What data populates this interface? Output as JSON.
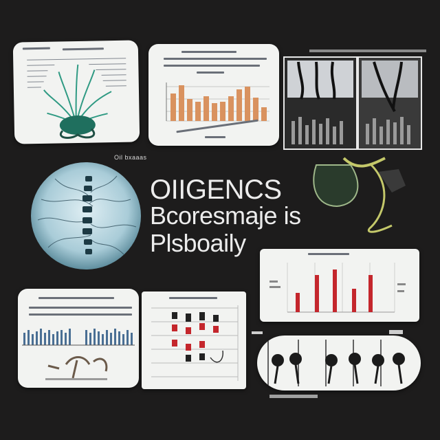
{
  "headline": {
    "line1": "OIIGENCS",
    "line2": "Bcoresmaje is",
    "line3": "Plsboaily"
  },
  "captions": {
    "mid_left": "Oil  bxaaas"
  },
  "colors": {
    "background": "#1d1c1c",
    "card": "#f2f3f1",
    "bar_orange": "#d9925f",
    "bar_red": "#c4262c",
    "bar_blue": "#4a6f94",
    "plant_green": "#2f9a83"
  }
}
